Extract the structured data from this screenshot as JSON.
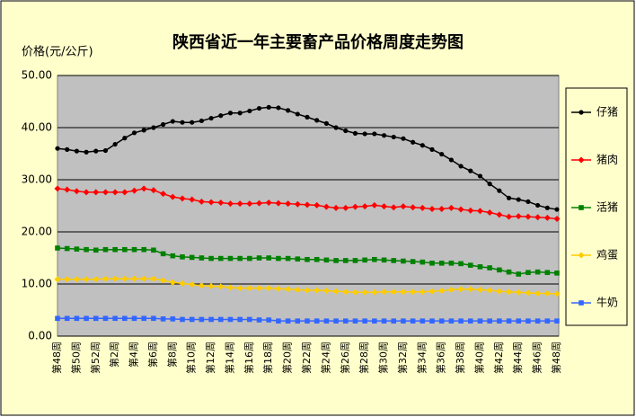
{
  "chart_data": {
    "type": "line",
    "title": "陕西省近一年主要畜产品价格周度走势图",
    "y_label": "价格(元/公斤)",
    "categories": [
      "第48周",
      null,
      "第50周",
      null,
      "第52周",
      null,
      "第2周",
      null,
      "第4周",
      null,
      "第6周",
      null,
      "第8周",
      null,
      "第10周",
      null,
      "第12周",
      null,
      "第14周",
      null,
      "第16周",
      null,
      "第18周",
      null,
      "第20周",
      null,
      "第22周",
      null,
      "第24周",
      null,
      "第26周",
      null,
      "第28周",
      null,
      "第30周",
      null,
      "第32周",
      null,
      "第34周",
      null,
      "第36周",
      null,
      "第38周",
      null,
      "第40周",
      null,
      "第42周",
      null,
      "第44周",
      null,
      "第46周",
      null,
      "第48周"
    ],
    "series": [
      {
        "name": "仔猪",
        "color": "#000000",
        "marker": "circle",
        "values": [
          36,
          35.8,
          35.5,
          35.3,
          35.5,
          35.6,
          36.8,
          38,
          39,
          39.5,
          40,
          40.6,
          41.2,
          41,
          41,
          41.3,
          41.8,
          42.3,
          42.8,
          42.8,
          43.2,
          43.7,
          43.9,
          43.8,
          43.3,
          42.6,
          42,
          41.4,
          40.8,
          40,
          39.4,
          38.9,
          38.8,
          38.8,
          38.5,
          38.2,
          37.9,
          37.2,
          36.6,
          35.8,
          34.9,
          33.8,
          32.6,
          31.7,
          30.7,
          29.2,
          27.9,
          26.5,
          26.2,
          25.8,
          25.1,
          24.6,
          24.3
        ]
      },
      {
        "name": "猪肉",
        "color": "#FF0000",
        "marker": "diamond",
        "values": [
          28.3,
          28.1,
          27.8,
          27.6,
          27.6,
          27.6,
          27.6,
          27.6,
          27.9,
          28.3,
          28,
          27.3,
          26.7,
          26.4,
          26.2,
          25.8,
          25.7,
          25.6,
          25.4,
          25.4,
          25.4,
          25.5,
          25.6,
          25.5,
          25.4,
          25.3,
          25.2,
          25.1,
          24.8,
          24.6,
          24.6,
          24.8,
          24.9,
          25.1,
          24.9,
          24.7,
          24.9,
          24.7,
          24.6,
          24.4,
          24.4,
          24.6,
          24.3,
          24.1,
          24,
          23.7,
          23.3,
          22.9,
          23,
          22.9,
          22.8,
          22.7,
          22.5
        ]
      },
      {
        "name": "活猪",
        "color": "#008000",
        "marker": "square",
        "values": [
          16.9,
          16.8,
          16.7,
          16.6,
          16.5,
          16.6,
          16.6,
          16.6,
          16.6,
          16.6,
          16.5,
          15.8,
          15.4,
          15.2,
          15.1,
          15,
          14.9,
          14.9,
          14.9,
          14.9,
          14.9,
          15,
          15,
          14.9,
          14.9,
          14.8,
          14.7,
          14.7,
          14.6,
          14.5,
          14.5,
          14.5,
          14.6,
          14.7,
          14.6,
          14.5,
          14.4,
          14.3,
          14.2,
          14,
          14,
          14,
          13.9,
          13.6,
          13.3,
          13.1,
          12.7,
          12.3,
          11.9,
          12.2,
          12.3,
          12.2,
          12.1
        ]
      },
      {
        "name": "鸡蛋",
        "color": "#FFCC00",
        "marker": "diamond",
        "values": [
          10.9,
          10.9,
          10.9,
          10.9,
          10.9,
          11,
          11,
          11,
          11,
          11,
          11,
          10.7,
          10.3,
          10.1,
          9.9,
          9.7,
          9.6,
          9.5,
          9.3,
          9.2,
          9.2,
          9.2,
          9.2,
          9.1,
          9,
          8.9,
          8.8,
          8.8,
          8.7,
          8.6,
          8.5,
          8.4,
          8.4,
          8.4,
          8.5,
          8.5,
          8.5,
          8.5,
          8.5,
          8.6,
          8.7,
          8.9,
          9,
          9,
          8.9,
          8.8,
          8.6,
          8.5,
          8.4,
          8.3,
          8.2,
          8.2,
          8.1
        ]
      },
      {
        "name": "牛奶",
        "color": "#3366FF",
        "marker": "square",
        "values": [
          3.4,
          3.4,
          3.4,
          3.4,
          3.4,
          3.4,
          3.4,
          3.4,
          3.4,
          3.4,
          3.4,
          3.3,
          3.3,
          3.2,
          3.2,
          3.2,
          3.2,
          3.2,
          3.2,
          3.2,
          3.2,
          3.1,
          3.1,
          2.9,
          2.9,
          2.9,
          2.9,
          2.9,
          2.9,
          2.9,
          2.9,
          2.9,
          2.9,
          2.9,
          2.9,
          2.9,
          2.9,
          2.9,
          2.9,
          2.9,
          2.9,
          2.9,
          2.9,
          2.9,
          2.9,
          2.9,
          2.9,
          2.9,
          2.9,
          2.9,
          2.9,
          2.9,
          2.9
        ]
      }
    ],
    "ylim": [
      0,
      50
    ],
    "yticks": [
      {
        "value": 0,
        "label": "0.00"
      },
      {
        "value": 10,
        "label": "10.00"
      },
      {
        "value": 20,
        "label": "20.00"
      },
      {
        "value": 30,
        "label": "30.00"
      },
      {
        "value": 40,
        "label": "40.00"
      },
      {
        "value": 50,
        "label": "50.00"
      }
    ],
    "grid": true,
    "legend": "right"
  }
}
